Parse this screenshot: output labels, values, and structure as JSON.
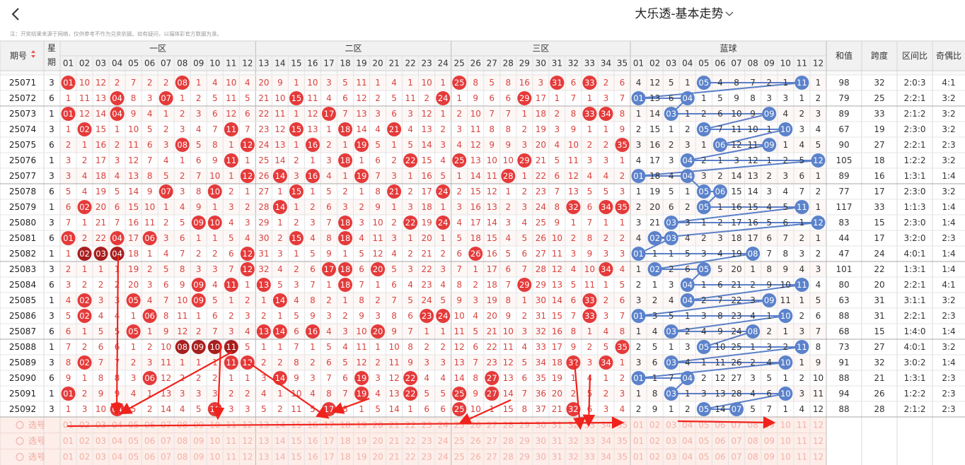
{
  "header": {
    "title": "大乐透-基本走势"
  },
  "note": "注：开奖结果来源于网络，仅供参考不作为兑奖依据。如有疑问，以福体彩官方数据为准。",
  "table": {
    "columns": {
      "issue": "期号",
      "week": "星期",
      "zones": [
        "一区",
        "二区",
        "三区"
      ],
      "blue": "蓝球",
      "sum": "和值",
      "span": "跨度",
      "zone_ratio": "区间比",
      "odd_even": "奇偶比"
    },
    "red_numbers": [
      "01",
      "02",
      "03",
      "04",
      "05",
      "06",
      "07",
      "08",
      "09",
      "10",
      "11",
      "12",
      "13",
      "14",
      "15",
      "16",
      "17",
      "18",
      "19",
      "20",
      "21",
      "22",
      "23",
      "24",
      "25",
      "26",
      "27",
      "28",
      "29",
      "30",
      "31",
      "32",
      "33",
      "34",
      "35"
    ],
    "blue_numbers": [
      "01",
      "02",
      "03",
      "04",
      "05",
      "06",
      "07",
      "08",
      "09",
      "10",
      "11",
      "12"
    ],
    "rows": [
      {
        "issue": "25071",
        "week": 3,
        "red": [
          "01",
          10,
          12,
          2,
          7,
          2,
          2,
          "08",
          1,
          4,
          10,
          4,
          20,
          9,
          1,
          10,
          3,
          5,
          11,
          1,
          4,
          1,
          10,
          1,
          "25",
          8,
          5,
          8,
          16,
          3,
          "31",
          6,
          "33",
          2,
          6
        ],
        "blue": [
          4,
          12,
          5,
          1,
          "05",
          4,
          8,
          7,
          2,
          1,
          "11",
          1
        ],
        "sum": 98,
        "span": 32,
        "zone_ratio": "2:0:3",
        "odd_even": "4:1"
      },
      {
        "issue": "25072",
        "week": 6,
        "red": [
          1,
          11,
          13,
          "04",
          8,
          3,
          "07",
          1,
          2,
          5,
          11,
          5,
          21,
          10,
          "15",
          11,
          4,
          6,
          12,
          2,
          5,
          11,
          2,
          "24",
          1,
          9,
          6,
          6,
          "29",
          17,
          1,
          7,
          1,
          3,
          7
        ],
        "blue": [
          "01",
          13,
          6,
          "04",
          1,
          5,
          9,
          8,
          3,
          3,
          1,
          2
        ],
        "sum": 79,
        "span": 25,
        "zone_ratio": "2:2:1",
        "odd_even": "3:2"
      },
      {
        "issue": "25073",
        "week": 1,
        "red": [
          "01",
          12,
          14,
          "04",
          9,
          4,
          1,
          2,
          3,
          6,
          12,
          6,
          22,
          11,
          1,
          12,
          "17",
          7,
          13,
          3,
          6,
          3,
          12,
          1,
          2,
          10,
          7,
          7,
          1,
          18,
          2,
          8,
          "33",
          "34",
          8
        ],
        "blue": [
          1,
          14,
          "03",
          1,
          2,
          6,
          10,
          9,
          "09",
          4,
          2,
          3
        ],
        "sum": 89,
        "span": 33,
        "zone_ratio": "2:1:2",
        "odd_even": "3:2"
      },
      {
        "issue": "25074",
        "week": 3,
        "red": [
          1,
          "02",
          15,
          1,
          10,
          5,
          2,
          3,
          4,
          7,
          "11",
          7,
          23,
          12,
          "15",
          13,
          1,
          "18",
          14,
          4,
          "21",
          4,
          13,
          2,
          3,
          11,
          8,
          8,
          2,
          19,
          3,
          9,
          1,
          1,
          9
        ],
        "blue": [
          2,
          15,
          1,
          2,
          "05",
          7,
          11,
          10,
          1,
          "10",
          3,
          4
        ],
        "sum": 67,
        "span": 19,
        "zone_ratio": "2:3:0",
        "odd_even": "3:2"
      },
      {
        "issue": "25075",
        "week": 6,
        "red": [
          2,
          1,
          16,
          2,
          11,
          6,
          3,
          "08",
          5,
          8,
          1,
          "12",
          24,
          13,
          1,
          "16",
          2,
          1,
          "19",
          5,
          1,
          5,
          14,
          3,
          4,
          12,
          9,
          9,
          3,
          20,
          4,
          10,
          2,
          2,
          "35"
        ],
        "blue": [
          3,
          16,
          2,
          3,
          1,
          "06",
          12,
          11,
          "09",
          1,
          4,
          5
        ],
        "sum": 90,
        "span": 27,
        "zone_ratio": "2:2:1",
        "odd_even": "2:3"
      },
      {
        "issue": "25076",
        "week": 1,
        "red": [
          3,
          2,
          17,
          3,
          12,
          7,
          4,
          1,
          6,
          9,
          "11",
          1,
          25,
          14,
          2,
          1,
          3,
          "18",
          1,
          6,
          2,
          "22",
          15,
          4,
          "25",
          13,
          10,
          10,
          "29",
          21,
          5,
          11,
          3,
          3,
          1
        ],
        "blue": [
          4,
          17,
          3,
          "04",
          2,
          1,
          3,
          12,
          1,
          2,
          5,
          "12"
        ],
        "sum": 105,
        "span": 18,
        "zone_ratio": "1:2:2",
        "odd_even": "3:2"
      },
      {
        "issue": "25077",
        "week": 3,
        "red": [
          3,
          4,
          18,
          4,
          13,
          8,
          5,
          2,
          7,
          10,
          1,
          "12",
          26,
          "14",
          3,
          "16",
          4,
          1,
          "19",
          7,
          3,
          1,
          16,
          5,
          1,
          14,
          11,
          "28",
          1,
          22,
          6,
          12,
          4,
          4,
          2
        ],
        "blue": [
          "01",
          18,
          4,
          "04",
          3,
          2,
          14,
          13,
          2,
          3,
          6,
          1
        ],
        "sum": 89,
        "span": 16,
        "zone_ratio": "1:3:1",
        "odd_even": "1:4"
      },
      {
        "issue": "25078",
        "week": 6,
        "red": [
          5,
          4,
          19,
          5,
          14,
          9,
          "07",
          3,
          8,
          "10",
          2,
          1,
          27,
          1,
          "15",
          1,
          5,
          2,
          1,
          8,
          "21",
          2,
          17,
          "24",
          2,
          15,
          12,
          1,
          2,
          23,
          7,
          13,
          5,
          5,
          3
        ],
        "blue": [
          1,
          19,
          5,
          1,
          "05",
          "06",
          15,
          14,
          3,
          4,
          7,
          2
        ],
        "sum": 77,
        "span": 17,
        "zone_ratio": "2:3:0",
        "odd_even": "3:2"
      },
      {
        "issue": "25079",
        "week": 1,
        "red": [
          6,
          "02",
          20,
          6,
          15,
          10,
          1,
          4,
          9,
          1,
          3,
          2,
          28,
          "14",
          1,
          2,
          6,
          3,
          2,
          9,
          1,
          3,
          18,
          1,
          3,
          16,
          13,
          2,
          3,
          24,
          8,
          "32",
          6,
          "34",
          "35"
        ],
        "blue": [
          2,
          20,
          6,
          2,
          "05",
          1,
          16,
          15,
          4,
          5,
          "11",
          1
        ],
        "sum": 117,
        "span": 33,
        "zone_ratio": "1:1:3",
        "odd_even": "1:4"
      },
      {
        "issue": "25080",
        "week": 3,
        "red": [
          7,
          1,
          21,
          7,
          16,
          11,
          2,
          5,
          "09",
          "10",
          4,
          3,
          29,
          1,
          2,
          3,
          7,
          "18",
          3,
          10,
          2,
          "22",
          19,
          "24",
          4,
          17,
          14,
          3,
          4,
          25,
          9,
          1,
          7,
          1,
          1
        ],
        "blue": [
          3,
          21,
          "03",
          3,
          1,
          2,
          17,
          16,
          5,
          6,
          1,
          "12"
        ],
        "sum": 83,
        "span": 15,
        "zone_ratio": "2:3:0",
        "odd_even": "1:4"
      },
      {
        "issue": "25081",
        "week": 6,
        "red": [
          "01",
          2,
          22,
          "04",
          17,
          "06",
          3,
          6,
          1,
          1,
          5,
          4,
          30,
          2,
          "15",
          4,
          8,
          "18",
          4,
          11,
          3,
          1,
          20,
          1,
          5,
          18,
          15,
          4,
          5,
          26,
          10,
          2,
          8,
          2,
          2
        ],
        "blue": [
          4,
          "02",
          "03",
          4,
          2,
          3,
          18,
          17,
          6,
          7,
          2,
          1
        ],
        "sum": 44,
        "span": 17,
        "zone_ratio": "3:2:0",
        "odd_even": "2:3"
      },
      {
        "issue": "25082",
        "week": 1,
        "red": [
          1,
          "02",
          "03",
          "04",
          18,
          1,
          4,
          7,
          2,
          2,
          6,
          "12",
          31,
          3,
          1,
          5,
          9,
          1,
          5,
          12,
          4,
          2,
          21,
          2,
          6,
          "26",
          16,
          5,
          6,
          27,
          11,
          3,
          9,
          3,
          3
        ],
        "blue": [
          "01",
          1,
          1,
          5,
          3,
          4,
          19,
          "08",
          7,
          8,
          3,
          2
        ],
        "sum": 47,
        "span": 24,
        "zone_ratio": "4:0:1",
        "odd_even": "1:4"
      },
      {
        "issue": "25083",
        "week": 3,
        "red": [
          2,
          1,
          1,
          1,
          19,
          2,
          5,
          8,
          3,
          3,
          7,
          "12",
          32,
          4,
          2,
          6,
          "17",
          "18",
          6,
          "20",
          5,
          3,
          22,
          3,
          7,
          1,
          17,
          6,
          7,
          28,
          12,
          4,
          10,
          "34",
          4
        ],
        "blue": [
          1,
          "02",
          2,
          6,
          "05",
          5,
          20,
          1,
          8,
          9,
          4,
          3
        ],
        "sum": 101,
        "span": 22,
        "zone_ratio": "1:3:1",
        "odd_even": "1:4"
      },
      {
        "issue": "25084",
        "week": 6,
        "red": [
          3,
          2,
          2,
          2,
          20,
          3,
          6,
          9,
          "09",
          4,
          "11",
          1,
          "13",
          5,
          3,
          7,
          1,
          "18",
          7,
          1,
          6,
          4,
          23,
          4,
          8,
          2,
          18,
          7,
          "29",
          29,
          13,
          5,
          11,
          1,
          5
        ],
        "blue": [
          2,
          1,
          3,
          "04",
          1,
          6,
          21,
          2,
          9,
          10,
          "11",
          4
        ],
        "sum": 80,
        "span": 20,
        "zone_ratio": "2:2:1",
        "odd_even": "4:1"
      },
      {
        "issue": "25085",
        "week": 1,
        "red": [
          4,
          "02",
          3,
          3,
          "05",
          4,
          7,
          10,
          "09",
          5,
          1,
          2,
          1,
          "14",
          4,
          8,
          2,
          1,
          8,
          2,
          7,
          5,
          24,
          5,
          9,
          3,
          19,
          8,
          1,
          30,
          14,
          6,
          "33",
          2,
          6
        ],
        "blue": [
          3,
          2,
          4,
          "04",
          2,
          7,
          22,
          3,
          "09",
          11,
          1,
          5
        ],
        "sum": 63,
        "span": 31,
        "zone_ratio": "3:1:1",
        "odd_even": "3:2"
      },
      {
        "issue": "25086",
        "week": 3,
        "red": [
          5,
          "02",
          4,
          4,
          1,
          "06",
          8,
          11,
          1,
          6,
          2,
          3,
          2,
          1,
          5,
          9,
          3,
          2,
          9,
          3,
          8,
          6,
          "23",
          "24",
          10,
          4,
          20,
          9,
          2,
          31,
          15,
          7,
          "33",
          3,
          7
        ],
        "blue": [
          "01",
          3,
          5,
          1,
          3,
          8,
          23,
          4,
          1,
          "10",
          2,
          6
        ],
        "sum": 88,
        "span": 31,
        "zone_ratio": "2:2:1",
        "odd_even": "2:3"
      },
      {
        "issue": "25087",
        "week": 6,
        "red": [
          6,
          1,
          5,
          5,
          "05",
          1,
          9,
          12,
          2,
          7,
          3,
          4,
          "13",
          "14",
          6,
          "16",
          4,
          3,
          10,
          "20",
          9,
          7,
          1,
          1,
          11,
          5,
          21,
          10,
          3,
          32,
          16,
          8,
          1,
          4,
          8
        ],
        "blue": [
          1,
          4,
          "03",
          2,
          4,
          9,
          24,
          "08",
          2,
          1,
          3,
          7
        ],
        "sum": 68,
        "span": 15,
        "zone_ratio": "1:4:0",
        "odd_even": "1:4"
      },
      {
        "issue": "25088",
        "week": 1,
        "red": [
          7,
          2,
          6,
          6,
          1,
          2,
          10,
          "08",
          "09",
          "10",
          "11",
          5,
          1,
          1,
          7,
          1,
          5,
          4,
          11,
          1,
          10,
          8,
          2,
          2,
          12,
          6,
          22,
          11,
          4,
          33,
          17,
          9,
          2,
          5,
          "35"
        ],
        "blue": [
          2,
          5,
          1,
          3,
          "05",
          10,
          25,
          1,
          3,
          2,
          "11",
          8
        ],
        "sum": 73,
        "span": 27,
        "zone_ratio": "4:0:1",
        "odd_even": "3:2"
      },
      {
        "issue": "25089",
        "week": 3,
        "red": [
          8,
          "02",
          7,
          7,
          2,
          3,
          11,
          1,
          1,
          1,
          "11",
          "12",
          2,
          2,
          8,
          2,
          6,
          5,
          12,
          2,
          11,
          9,
          3,
          3,
          13,
          7,
          23,
          12,
          5,
          34,
          18,
          "32",
          3,
          "34",
          1
        ],
        "blue": [
          3,
          6,
          "03",
          4,
          1,
          11,
          26,
          2,
          4,
          "10",
          1,
          9
        ],
        "sum": 91,
        "span": 32,
        "zone_ratio": "3:0:2",
        "odd_even": "1:4"
      },
      {
        "issue": "25090",
        "week": 6,
        "red": [
          9,
          1,
          8,
          8,
          3,
          "06",
          12,
          2,
          2,
          2,
          1,
          1,
          3,
          "14",
          9,
          3,
          7,
          6,
          "19",
          3,
          12,
          "22",
          4,
          4,
          14,
          8,
          "27",
          13,
          6,
          35,
          19,
          1,
          4,
          1,
          2
        ],
        "blue": [
          "01",
          1,
          7,
          "04",
          2,
          12,
          27,
          3,
          5,
          1,
          2,
          10
        ],
        "sum": 88,
        "span": 21,
        "zone_ratio": "1:3:1",
        "odd_even": "2:3"
      },
      {
        "issue": "25091",
        "week": 1,
        "red": [
          "01",
          2,
          9,
          9,
          4,
          1,
          13,
          3,
          3,
          3,
          2,
          2,
          4,
          1,
          10,
          4,
          8,
          7,
          "19",
          4,
          13,
          "22",
          5,
          5,
          "25",
          9,
          "27",
          14,
          7,
          36,
          20,
          2,
          5,
          2,
          3
        ],
        "blue": [
          1,
          8,
          "03",
          1,
          3,
          13,
          28,
          4,
          6,
          "10",
          3,
          11
        ],
        "sum": 94,
        "span": 26,
        "zone_ratio": "1:2:2",
        "odd_even": "2:3"
      },
      {
        "issue": "25092",
        "week": 3,
        "red": [
          1,
          3,
          10,
          "04",
          5,
          2,
          14,
          4,
          5,
          "10",
          3,
          3,
          5,
          2,
          11,
          5,
          "17",
          8,
          1,
          5,
          14,
          1,
          6,
          6,
          "25",
          10,
          1,
          15,
          8,
          37,
          21,
          "32",
          6,
          3,
          4
        ],
        "blue": [
          2,
          9,
          1,
          2,
          "05",
          14,
          "07",
          5,
          7,
          1,
          4,
          12
        ],
        "sum": 88,
        "span": 28,
        "zone_ratio": "2:1:2",
        "odd_even": "2:3"
      }
    ],
    "pick_rows": [
      "选号",
      "选号",
      "选号"
    ]
  }
}
